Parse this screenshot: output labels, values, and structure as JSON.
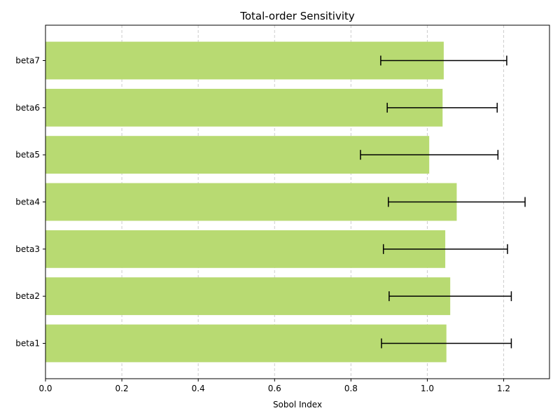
{
  "chart_data": {
    "type": "bar",
    "orientation": "horizontal",
    "title": "Total-order Sensitivity",
    "xlabel": "Sobol Index",
    "ylabel": "",
    "categories": [
      "beta1",
      "beta2",
      "beta3",
      "beta4",
      "beta5",
      "beta6",
      "beta7"
    ],
    "values": [
      1.05,
      1.06,
      1.047,
      1.077,
      1.005,
      1.04,
      1.043
    ],
    "error_low": [
      0.88,
      0.9,
      0.885,
      0.898,
      0.825,
      0.895,
      0.878
    ],
    "error_high": [
      1.22,
      1.22,
      1.21,
      1.256,
      1.185,
      1.183,
      1.208
    ],
    "xlim": [
      0.0,
      1.32
    ],
    "xticks": [
      "0.0",
      "0.2",
      "0.4",
      "0.6",
      "0.8",
      "1.0",
      "1.2"
    ],
    "grid": "x-dashed",
    "bar_color": "#b8da72",
    "error_color": "#000000"
  }
}
